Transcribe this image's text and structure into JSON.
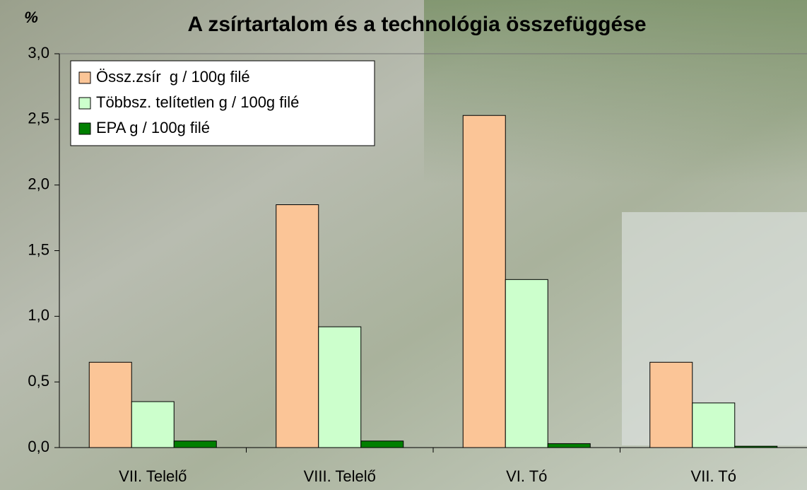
{
  "chart_data": {
    "type": "bar",
    "title": "A zsírtartalom és a technológia összefüggése",
    "y_label": "%",
    "categories": [
      "VII. Telelő",
      "VIII. Telelő",
      "VI. Tó",
      "VII. Tó"
    ],
    "series": [
      {
        "name": "Össz.zsír  g / 100g filé",
        "color": "#fbc597",
        "values": [
          0.65,
          1.85,
          2.53,
          0.65
        ]
      },
      {
        "name": "Többsz. telítetlen g / 100g filé",
        "color": "#ccffcc",
        "values": [
          0.35,
          0.92,
          1.28,
          0.34
        ]
      },
      {
        "name": "EPA g / 100g filé",
        "color": "#007f00",
        "values": [
          0.05,
          0.05,
          0.03,
          0.01
        ]
      }
    ],
    "ylim": [
      0,
      3
    ],
    "yticks": [
      {
        "value": 0,
        "label": "0,0"
      },
      {
        "value": 0.5,
        "label": "0,5"
      },
      {
        "value": 1,
        "label": "1,0"
      },
      {
        "value": 1.5,
        "label": "1,5"
      },
      {
        "value": 2,
        "label": "2,0"
      },
      {
        "value": 2.5,
        "label": "2,5"
      },
      {
        "value": 3,
        "label": "3,0"
      }
    ],
    "legend": "top-left"
  }
}
